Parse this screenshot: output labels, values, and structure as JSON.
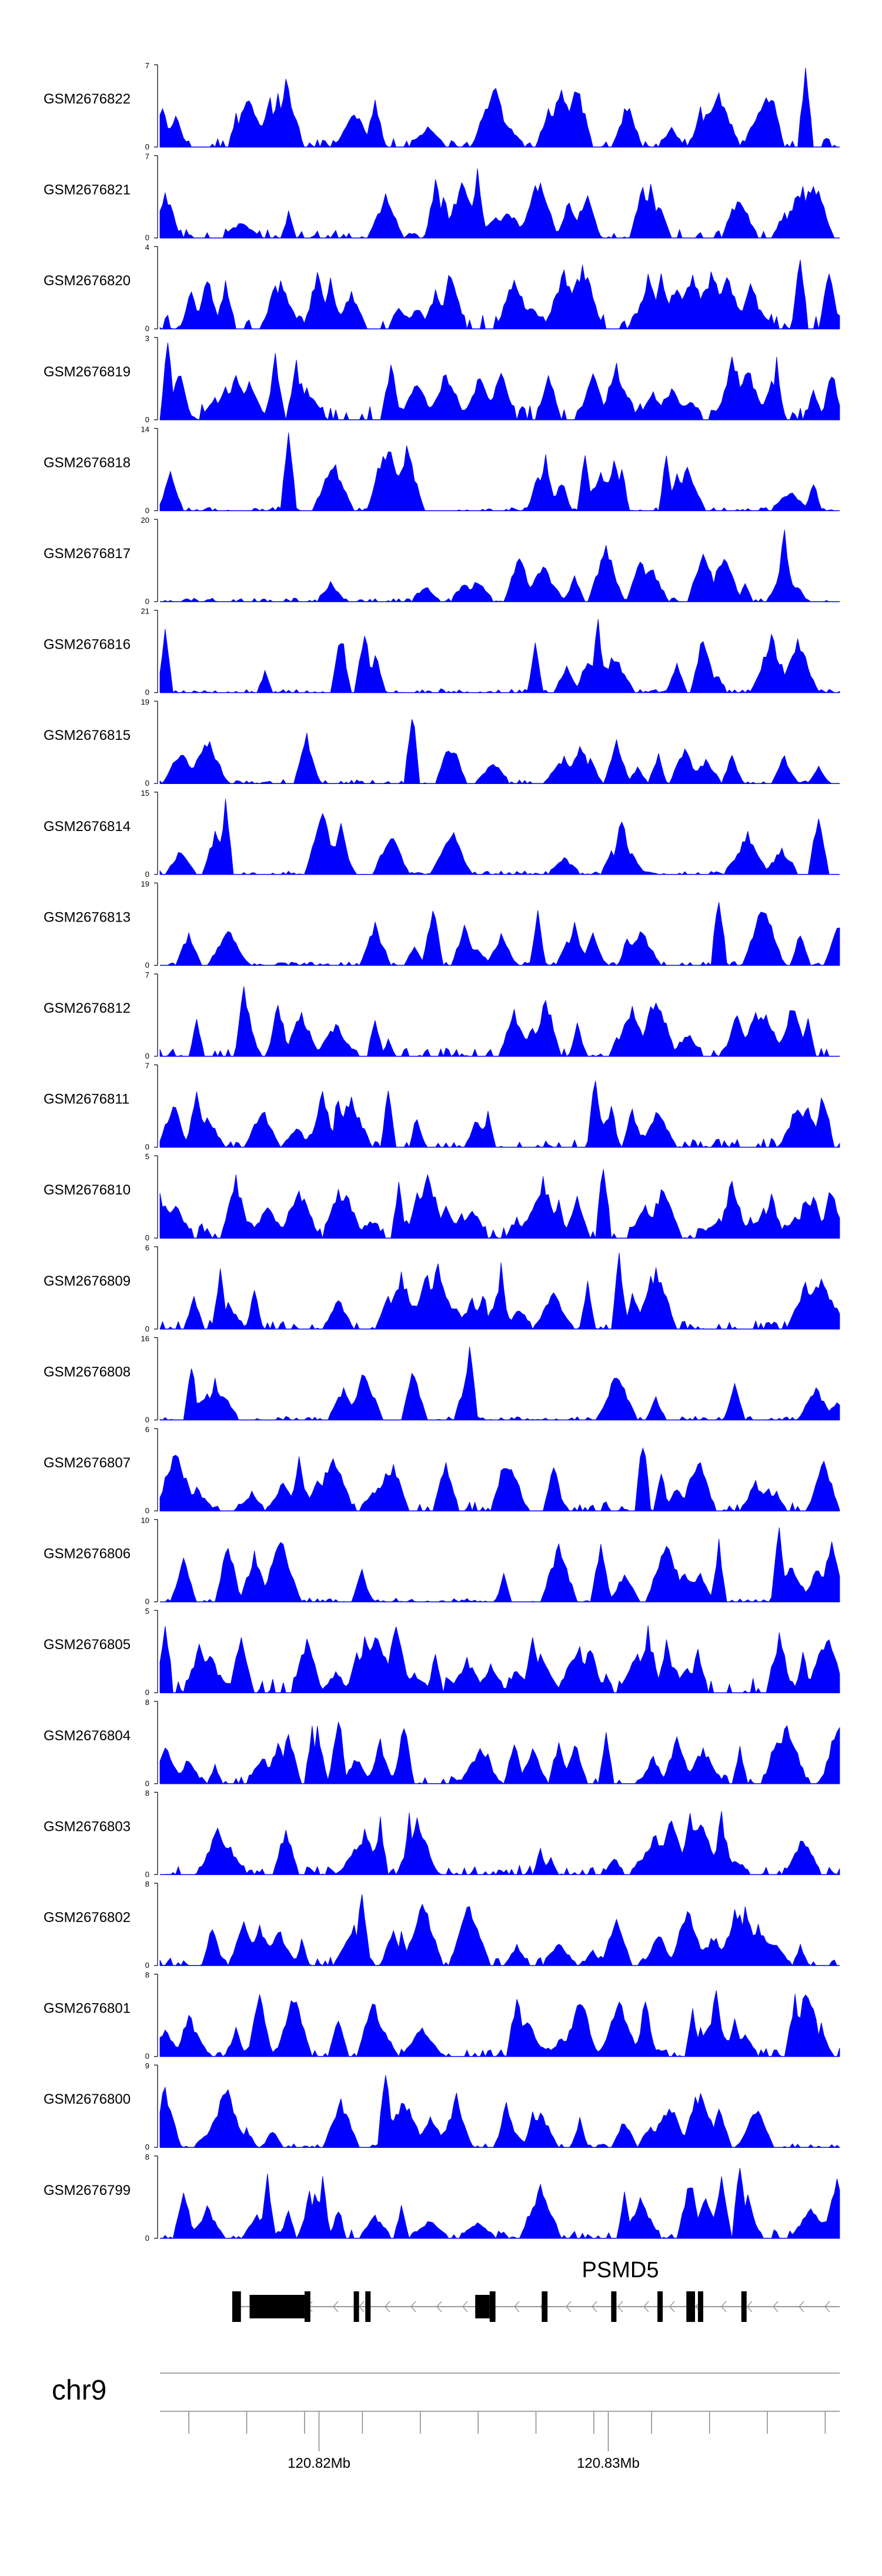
{
  "chart_data": {
    "type": "area",
    "title": "",
    "color": "#0000ff",
    "chromosome": "chr9",
    "x_range_mb": [
      120.8145,
      120.838
    ],
    "tracks": [
      {
        "name": "GSM2676822",
        "ymax": 7
      },
      {
        "name": "GSM2676821",
        "ymax": 7
      },
      {
        "name": "GSM2676820",
        "ymax": 4
      },
      {
        "name": "GSM2676819",
        "ymax": 3
      },
      {
        "name": "GSM2676818",
        "ymax": 14
      },
      {
        "name": "GSM2676817",
        "ymax": 20
      },
      {
        "name": "GSM2676816",
        "ymax": 21
      },
      {
        "name": "GSM2676815",
        "ymax": 19
      },
      {
        "name": "GSM2676814",
        "ymax": 15
      },
      {
        "name": "GSM2676813",
        "ymax": 19
      },
      {
        "name": "GSM2676812",
        "ymax": 7
      },
      {
        "name": "GSM2676811",
        "ymax": 7
      },
      {
        "name": "GSM2676810",
        "ymax": 5
      },
      {
        "name": "GSM2676809",
        "ymax": 6
      },
      {
        "name": "GSM2676808",
        "ymax": 16
      },
      {
        "name": "GSM2676807",
        "ymax": 6
      },
      {
        "name": "GSM2676806",
        "ymax": 10
      },
      {
        "name": "GSM2676805",
        "ymax": 5
      },
      {
        "name": "GSM2676804",
        "ymax": 8
      },
      {
        "name": "GSM2676803",
        "ymax": 8
      },
      {
        "name": "GSM2676802",
        "ymax": 8
      },
      {
        "name": "GSM2676801",
        "ymax": 8
      },
      {
        "name": "GSM2676800",
        "ymax": 9
      },
      {
        "name": "GSM2676799",
        "ymax": 8
      }
    ],
    "ymin_label": "0",
    "gene": {
      "name": "PSMD5",
      "strand": "-",
      "exons_mb": [
        [
          120.817,
          120.8173
        ],
        [
          120.8176,
          120.8195
        ],
        [
          120.8195,
          120.8197
        ],
        [
          120.8212,
          120.8213
        ],
        [
          120.8216,
          120.8217
        ],
        [
          120.8254,
          120.8259
        ],
        [
          120.8259,
          120.8261
        ],
        [
          120.8277,
          120.8279
        ],
        [
          120.8301,
          120.8302
        ],
        [
          120.8317,
          120.8318
        ],
        [
          120.8327,
          120.833
        ],
        [
          120.8331,
          120.8332
        ],
        [
          120.8346,
          120.8347
        ]
      ]
    },
    "axis_labels": [
      {
        "mb": 120.82,
        "text": "120.82Mb"
      },
      {
        "mb": 120.83,
        "text": "120.83Mb"
      }
    ],
    "minor_ticks_mb": [
      120.8155,
      120.8175,
      120.8195,
      120.8215,
      120.8235,
      120.8255,
      120.8275,
      120.8295,
      120.8315,
      120.8335,
      120.8355,
      120.8375
    ]
  }
}
